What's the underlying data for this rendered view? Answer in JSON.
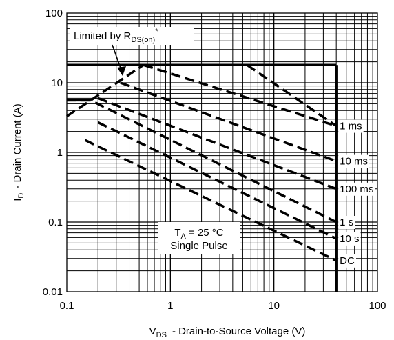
{
  "chart_data": {
    "type": "line",
    "x_scale": "log",
    "y_scale": "log",
    "xlim": [
      0.1,
      100
    ],
    "ylim": [
      0.01,
      100
    ],
    "grid": true,
    "x_ticks": [
      "0.1",
      "1",
      "10",
      "100"
    ],
    "y_ticks": [
      "0.01",
      "0.1",
      "1",
      "10",
      "100"
    ],
    "xlabel": {
      "symbol_main": "V",
      "symbol_sub": "DS",
      "text": "-   Drain-to-Source Voltage (V)"
    },
    "ylabel": {
      "symbol_main": "I",
      "symbol_sub": "D",
      "text": "- Drain Current (A)"
    },
    "annotations": {
      "limited": {
        "prefix": "Limited by R",
        "sub": "DS(on)",
        "suffix": "*"
      },
      "conditions": {
        "line1_main": "T",
        "line1_sub": "A",
        "line1_rest": " = 25 °C",
        "line2": "Single Pulse"
      }
    },
    "limits": {
      "current_max_A": 18,
      "voltage_max_V": 40
    },
    "series": [
      {
        "name": "1 ms",
        "style": "dashed",
        "points": [
          [
            0.55,
            18
          ],
          [
            40,
            2.4
          ]
        ]
      },
      {
        "name": "10 ms",
        "style": "dashed",
        "points": [
          [
            0.33,
            10
          ],
          [
            40,
            0.75
          ]
        ]
      },
      {
        "name": "100 ms",
        "style": "dashed",
        "points": [
          [
            0.2,
            6.0
          ],
          [
            40,
            0.3
          ]
        ]
      },
      {
        "name": "1 s",
        "style": "dashed",
        "points": [
          [
            0.1,
            5.6
          ],
          [
            0.17,
            5.6
          ],
          [
            40,
            0.1
          ]
        ]
      },
      {
        "name": "10 s",
        "style": "dashed",
        "points": [
          [
            0.2,
            2.7
          ],
          [
            40,
            0.058
          ]
        ]
      },
      {
        "name": "DC",
        "style": "dashed",
        "points": [
          [
            0.15,
            1.5
          ],
          [
            40,
            0.028
          ]
        ]
      },
      {
        "name": "",
        "style": "dashed",
        "points": [
          [
            0.1,
            3.3
          ],
          [
            0.55,
            18
          ]
        ]
      },
      {
        "name": "",
        "style": "dashed",
        "points": [
          [
            5.5,
            18
          ],
          [
            40,
            2.4
          ]
        ]
      },
      {
        "name": "",
        "style": "solid",
        "points": [
          [
            0.1,
            5.6
          ],
          [
            0.17,
            5.6
          ]
        ]
      }
    ]
  }
}
